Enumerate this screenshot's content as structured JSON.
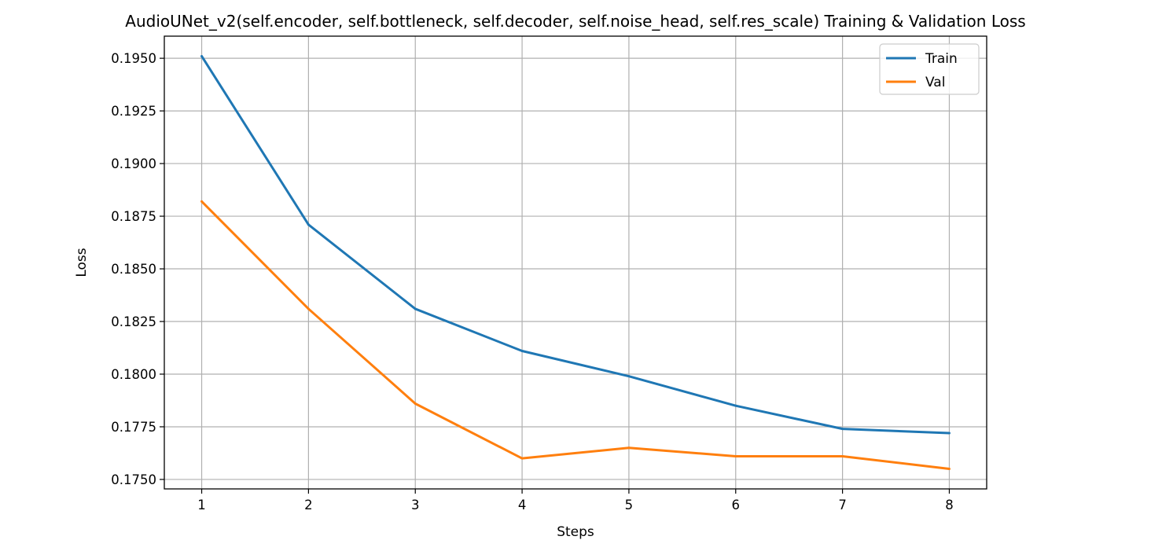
{
  "chart_data": {
    "type": "line",
    "title": "AudioUNet_v2(self.encoder, self.bottleneck, self.decoder, self.noise_head, self.res_scale) Training & Validation Loss",
    "xlabel": "Steps",
    "ylabel": "Loss",
    "x": [
      1,
      2,
      3,
      4,
      5,
      6,
      7,
      8
    ],
    "x_ticks": [
      "1",
      "2",
      "3",
      "4",
      "5",
      "6",
      "7",
      "8"
    ],
    "y_ticks": [
      "0.1750",
      "0.1775",
      "0.1800",
      "0.1825",
      "0.1850",
      "0.1875",
      "0.1900",
      "0.1925",
      "0.1950"
    ],
    "xlim": [
      0.65,
      8.35
    ],
    "ylim": [
      0.17455,
      0.19605
    ],
    "grid": true,
    "legend_position": "upper right",
    "series": [
      {
        "name": "Train",
        "color": "#1f77b4",
        "values": [
          0.1951,
          0.1871,
          0.1831,
          0.1811,
          0.1799,
          0.1785,
          0.1774,
          0.1772
        ]
      },
      {
        "name": "Val",
        "color": "#ff7f0e",
        "values": [
          0.1882,
          0.1831,
          0.1786,
          0.176,
          0.1765,
          0.1761,
          0.1761,
          0.1755
        ]
      }
    ]
  }
}
